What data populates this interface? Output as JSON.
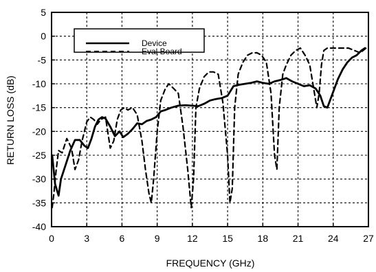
{
  "chart_data": {
    "type": "line",
    "title": "",
    "xlabel": "FREQUENCY (GHz)",
    "ylabel": "RETURN LOSS (dB)",
    "xlim": [
      0,
      27
    ],
    "ylim": [
      -40,
      5
    ],
    "x_ticks": [
      0,
      3,
      6,
      9,
      12,
      15,
      18,
      21,
      24,
      27
    ],
    "y_ticks": [
      5,
      0,
      -5,
      -10,
      -15,
      -20,
      -25,
      -30,
      -35,
      -40
    ],
    "x_tick_labels": [
      "0",
      "3",
      "6",
      "9",
      "12",
      "15",
      "18",
      "21",
      "24",
      "27"
    ],
    "y_tick_labels": [
      "5",
      "0",
      "-5",
      "-10",
      "-15",
      "-20",
      "-25",
      "-30",
      "-35",
      "-40"
    ],
    "grid": true,
    "legend_position": "top-left",
    "series": [
      {
        "name": "Device",
        "style": "solid",
        "color": "#000000",
        "x": [
          0.05,
          0.3,
          0.6,
          0.8,
          1.2,
          1.6,
          2.0,
          2.4,
          2.8,
          3.1,
          3.4,
          3.7,
          4.0,
          4.3,
          4.6,
          5.0,
          5.4,
          5.8,
          6.1,
          6.5,
          6.9,
          7.3,
          7.7,
          8.1,
          8.5,
          8.9,
          9.3,
          9.7,
          10.2,
          10.8,
          11.4,
          12.0,
          12.5,
          13.0,
          13.5,
          14.0,
          14.5,
          15.0,
          15.5,
          16.0,
          16.5,
          17.0,
          17.5,
          18.0,
          18.5,
          19.0,
          19.5,
          20.0,
          20.5,
          21.0,
          21.5,
          22.0,
          22.5,
          22.9,
          23.2,
          23.5,
          23.8,
          24.1,
          24.4,
          24.8,
          25.2,
          25.6,
          26.0,
          26.4,
          26.7
        ],
        "y": [
          -25,
          -31,
          -33.5,
          -30,
          -27,
          -24,
          -21.8,
          -21.8,
          -23,
          -23.5,
          -21.5,
          -19,
          -17.5,
          -17,
          -17.3,
          -19,
          -21,
          -20,
          -21.2,
          -20.5,
          -19.5,
          -18.3,
          -18.5,
          -17.8,
          -17.5,
          -17,
          -15.8,
          -15.5,
          -15,
          -14.6,
          -14.5,
          -14.6,
          -14.7,
          -14.2,
          -13.5,
          -13.2,
          -13,
          -12.5,
          -10.5,
          -10.2,
          -10,
          -9.8,
          -9.5,
          -9.8,
          -10,
          -9.5,
          -9.2,
          -8.8,
          -9.5,
          -10,
          -10.5,
          -10.3,
          -11,
          -12.5,
          -14.7,
          -15,
          -13,
          -11,
          -9,
          -7,
          -5.5,
          -4.5,
          -4,
          -3,
          -2.5
        ]
      },
      {
        "name": "Eval Board",
        "style": "dashed",
        "color": "#000000",
        "x": [
          0.05,
          0.2,
          0.4,
          0.6,
          0.9,
          1.3,
          1.7,
          2.0,
          2.3,
          2.6,
          3.0,
          3.3,
          3.6,
          3.9,
          4.2,
          4.6,
          5.0,
          5.3,
          5.6,
          5.9,
          6.2,
          6.5,
          6.9,
          7.3,
          7.7,
          8.0,
          8.3,
          8.5,
          8.7,
          9.0,
          9.3,
          9.7,
          10.0,
          10.4,
          10.8,
          11.2,
          11.6,
          11.9,
          12.1,
          12.3,
          12.6,
          13.0,
          13.4,
          13.8,
          14.2,
          14.6,
          15.0,
          15.2,
          15.4,
          15.6,
          15.9,
          16.3,
          16.7,
          17.1,
          17.5,
          17.9,
          18.3,
          18.7,
          19.0,
          19.2,
          19.4,
          19.7,
          20.0,
          20.4,
          20.8,
          21.2,
          21.6,
          22.0,
          22.4,
          22.6,
          22.8,
          23.0,
          23.2,
          23.5,
          23.9,
          24.3,
          24.8,
          25.3,
          25.8,
          26.3,
          26.8
        ],
        "y": [
          -36,
          -33,
          -28,
          -24,
          -24.5,
          -21.5,
          -23.5,
          -28,
          -26,
          -22,
          -18,
          -17,
          -17.5,
          -18.5,
          -17.5,
          -17,
          -23.5,
          -22,
          -17.5,
          -15.5,
          -15,
          -15.5,
          -15,
          -16.5,
          -22,
          -28,
          -33,
          -35,
          -30,
          -20,
          -13.5,
          -11,
          -10,
          -11,
          -12,
          -19,
          -28,
          -36,
          -30,
          -15,
          -11,
          -8.5,
          -7.5,
          -7.5,
          -8,
          -14,
          -25,
          -35,
          -32,
          -15,
          -8,
          -5.5,
          -4,
          -3.5,
          -3.5,
          -4,
          -5.5,
          -12,
          -25,
          -28,
          -15,
          -8,
          -6,
          -4,
          -3,
          -2.5,
          -4,
          -6,
          -12,
          -15,
          -12,
          -6,
          -3,
          -2.5,
          -2.5,
          -2.5,
          -2.5,
          -2.5,
          -3,
          -3.5,
          -2.5
        ]
      }
    ]
  }
}
